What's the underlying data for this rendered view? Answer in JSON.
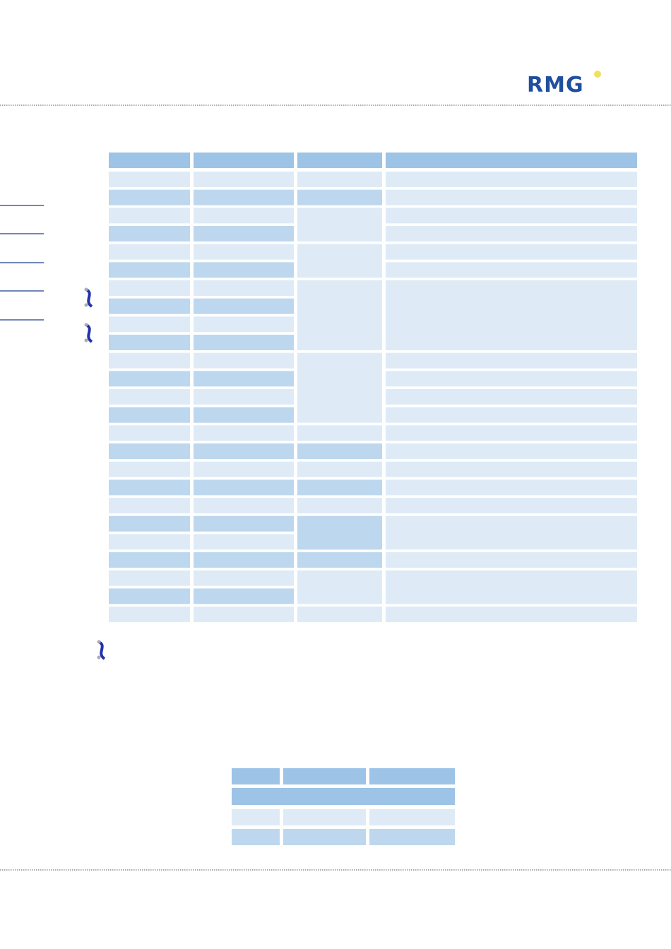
{
  "header": {
    "logo": "RMG"
  }
}
